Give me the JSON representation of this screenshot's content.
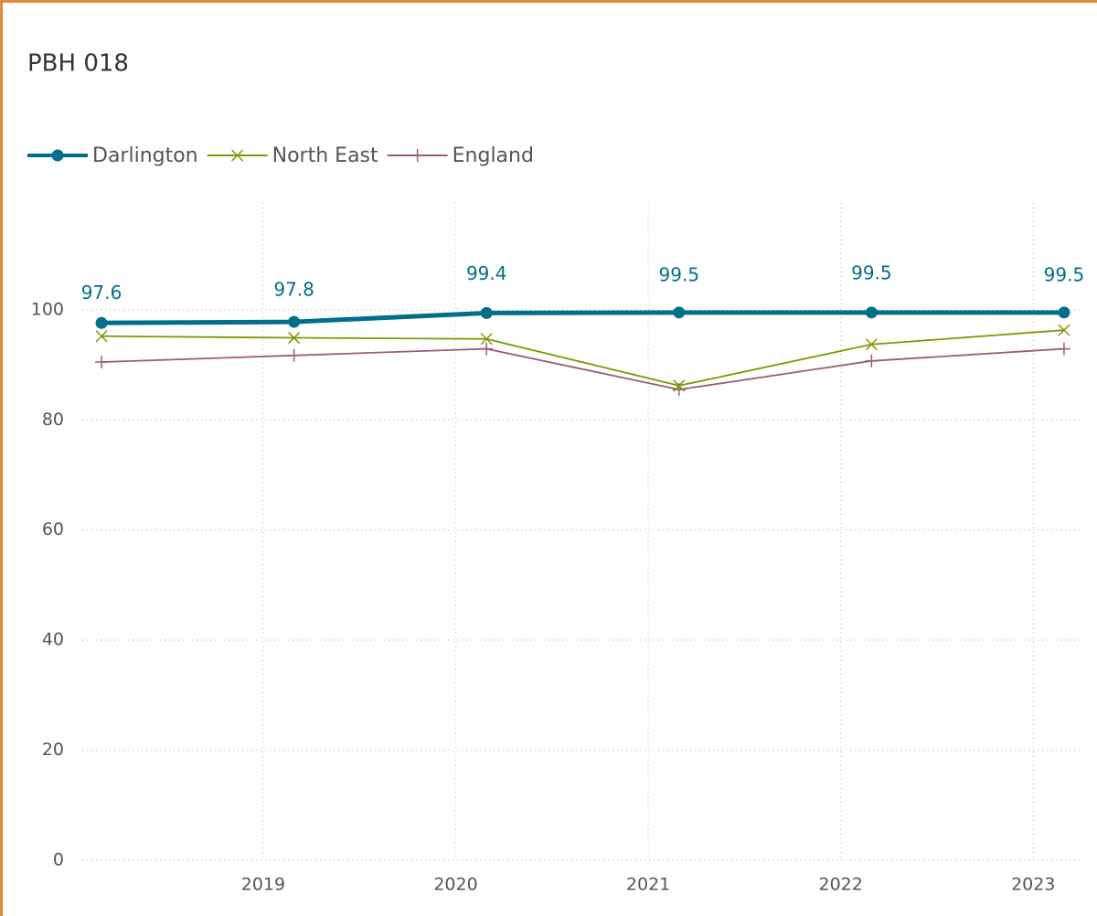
{
  "chart_data": {
    "type": "line",
    "title": "PBH 018",
    "x": [
      2018.16,
      2019.16,
      2020.16,
      2021.16,
      2022.16,
      2023.16
    ],
    "series": [
      {
        "name": "Darlington",
        "color": "#00708a",
        "marker": "circle",
        "values": [
          97.6,
          97.8,
          99.4,
          99.5,
          99.5,
          99.5
        ],
        "value_labels": [
          "97.6",
          "97.8",
          "99.4",
          "99.5",
          "99.5",
          "99.5"
        ]
      },
      {
        "name": "North East",
        "color": "#7a9a01",
        "marker": "x",
        "values": [
          95.2,
          94.9,
          94.7,
          86.2,
          93.7,
          96.3
        ]
      },
      {
        "name": "England",
        "color": "#9c5a7a",
        "marker": "plus",
        "values": [
          90.5,
          91.7,
          92.9,
          85.5,
          90.7,
          92.9
        ]
      }
    ],
    "xlim": [
      2018.06,
      2023.26
    ],
    "xticks": [
      2019,
      2020,
      2021,
      2022,
      2023
    ],
    "ylim": [
      0,
      119.4
    ],
    "yticks": [
      0,
      20,
      40,
      60,
      80,
      100
    ],
    "grid": true,
    "legend": "top-left"
  }
}
